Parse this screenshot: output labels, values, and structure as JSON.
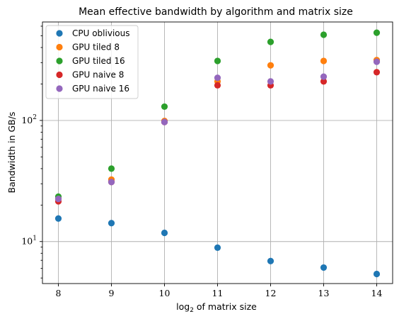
{
  "chart_data": {
    "type": "scatter",
    "title": "Mean effective bandwidth by algorithm and matrix size",
    "xlabel_base": "log",
    "xlabel_sub": "2",
    "xlabel_rest": " of matrix size",
    "ylabel": "Bandwidth in GB/s",
    "x": [
      8,
      9,
      10,
      11,
      12,
      13,
      14
    ],
    "xlim": [
      7.7,
      14.3
    ],
    "ylim": [
      4.5,
      650
    ],
    "yscale": "log",
    "x_ticks": [
      "8",
      "9",
      "10",
      "11",
      "12",
      "13",
      "14"
    ],
    "y_ticks": [
      {
        "value": 10,
        "base": "10",
        "exp": "1"
      },
      {
        "value": 100,
        "base": "10",
        "exp": "2"
      }
    ],
    "grid": true,
    "legend_position": "top-left",
    "series": [
      {
        "name": "CPU oblivious",
        "color": "#1f77b4",
        "values": [
          15.5,
          14.2,
          11.8,
          8.9,
          6.9,
          6.1,
          5.4
        ]
      },
      {
        "name": "GPU tiled 8",
        "color": "#ff7f0e",
        "values": [
          22.5,
          32.5,
          99,
          210,
          285,
          310,
          315
        ]
      },
      {
        "name": "GPU tiled 16",
        "color": "#2ca02c",
        "values": [
          23.5,
          40,
          130,
          310,
          445,
          510,
          530
        ]
      },
      {
        "name": "GPU naive 8",
        "color": "#d62728",
        "values": [
          21.5,
          31,
          97,
          195,
          195,
          210,
          250
        ]
      },
      {
        "name": "GPU naive 16",
        "color": "#9467bd",
        "values": [
          22.5,
          31,
          97,
          225,
          210,
          230,
          305
        ]
      }
    ]
  }
}
